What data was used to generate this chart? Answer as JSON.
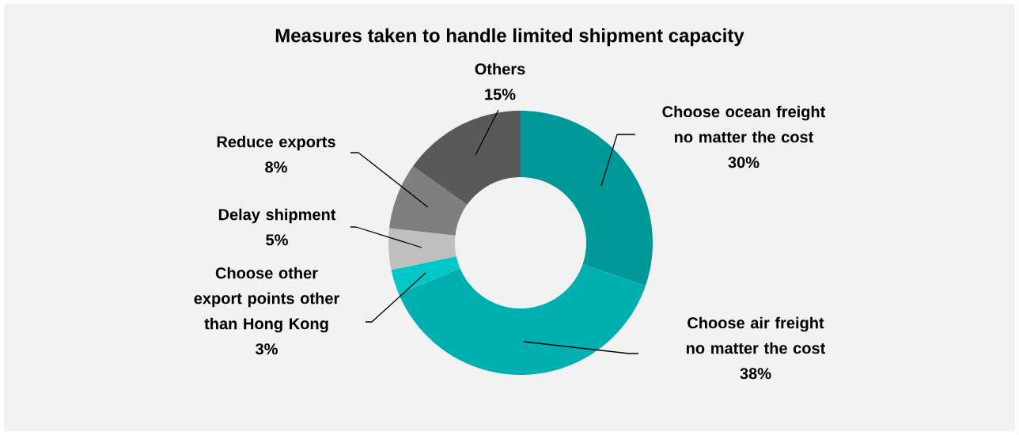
{
  "chart_data": {
    "type": "donut",
    "title": "Measures taken to handle limited shipment capacity",
    "categories": [
      "Choose ocean freight no matter the cost",
      "Choose air freight no matter the cost",
      "Choose other export points other than Hong Kong",
      "Delay shipment",
      "Reduce exports",
      "Others"
    ],
    "values": [
      30,
      38,
      3,
      5,
      8,
      15
    ],
    "value_labels": [
      "30%",
      "38%",
      "3%",
      "5%",
      "8%",
      "15%"
    ],
    "colors": [
      "#009999",
      "#00b0b0",
      "#00c8c8",
      "#bfbfbf",
      "#7f7f7f",
      "#595959"
    ]
  }
}
